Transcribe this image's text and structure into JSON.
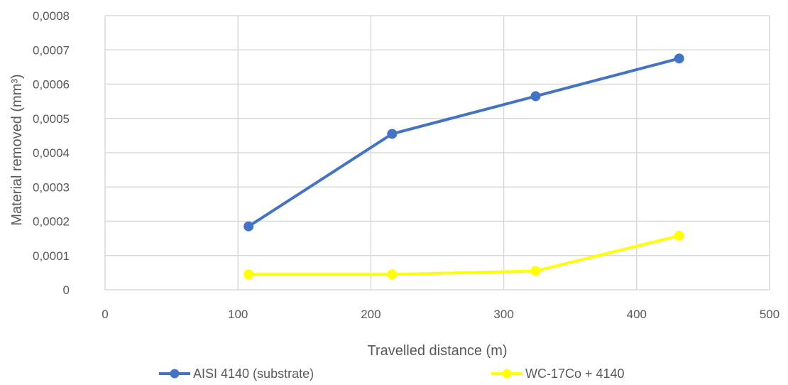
{
  "chart_data": {
    "type": "line",
    "title": "",
    "xlabel": "Travelled distance (m)",
    "ylabel": "Material removed (mm³)",
    "xlim": [
      0,
      500
    ],
    "ylim": [
      0,
      0.0008
    ],
    "x_ticks": [
      0,
      100,
      200,
      300,
      400,
      500
    ],
    "x_tick_labels": [
      "0",
      "100",
      "200",
      "300",
      "400",
      "500"
    ],
    "y_ticks": [
      0,
      0.0001,
      0.0002,
      0.0003,
      0.0004,
      0.0005,
      0.0006,
      0.0007,
      0.0008
    ],
    "y_tick_labels": [
      "0",
      "0,0001",
      "0,0002",
      "0,0003",
      "0,0004",
      "0,0005",
      "0,0006",
      "0,0007",
      "0,0008"
    ],
    "grid": true,
    "legend_position": "bottom",
    "series": [
      {
        "name": "AISI 4140 (substrate)",
        "color": "#4472c4",
        "x": [
          108,
          216,
          324,
          432
        ],
        "y": [
          0.000185,
          0.000455,
          0.000565,
          0.000675
        ]
      },
      {
        "name": "WC-17Co + 4140",
        "color": "#ffff00",
        "x": [
          108,
          216,
          324,
          432
        ],
        "y": [
          4.5e-05,
          4.5e-05,
          5.5e-05,
          0.000158
        ]
      }
    ]
  }
}
